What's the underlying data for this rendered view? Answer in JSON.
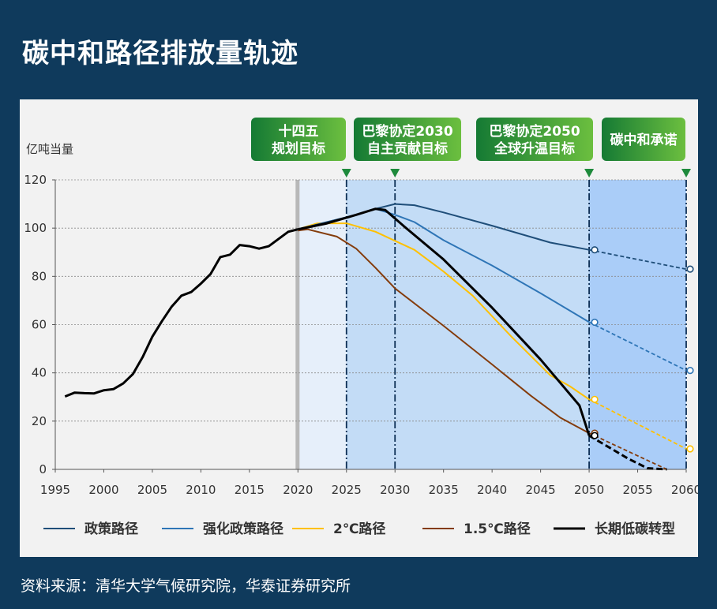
{
  "page": {
    "title": "碳中和路径排放量轨迹",
    "source": "资料来源：清华大学气候研究院，华泰证券研究所"
  },
  "colors": {
    "background": "#0f3a5c",
    "panel": "#f2f2f2",
    "policy": "#1f4e79",
    "enhanced": "#2e75b6",
    "two_c": "#ffc000",
    "one_five_c": "#843c0c",
    "long_term": "#000000",
    "marker_green": "#1e8a3c"
  },
  "chart_data": {
    "type": "line",
    "ylabel": "亿吨当量",
    "xlim": [
      1995,
      2060
    ],
    "ylim": [
      0,
      120
    ],
    "x_ticks": [
      1995,
      2000,
      2005,
      2010,
      2015,
      2020,
      2025,
      2030,
      2035,
      2040,
      2045,
      2050,
      2055,
      2060
    ],
    "y_ticks": [
      0,
      20,
      40,
      60,
      80,
      100,
      120
    ],
    "grid": true,
    "legend_position": "bottom",
    "milestones": [
      {
        "x": 2025,
        "label_line1": "十四五",
        "label_line2": "规划目标"
      },
      {
        "x": 2030,
        "label_line1": "巴黎协定2030",
        "label_line2": "自主贡献目标"
      },
      {
        "x": 2050,
        "label_line1": "巴黎协定2050",
        "label_line2": "全球升温目标"
      },
      {
        "x": 2060,
        "label_line1": "碳中和承诺",
        "label_line2": ""
      }
    ],
    "history": {
      "name": "",
      "points": [
        [
          1996,
          30.2
        ],
        [
          1997,
          31.8
        ],
        [
          1998,
          31.6
        ],
        [
          1999,
          31.5
        ],
        [
          2000,
          32.8
        ],
        [
          2001,
          33.3
        ],
        [
          2002,
          35.6
        ],
        [
          2003,
          39.5
        ],
        [
          2004,
          46.5
        ],
        [
          2005,
          55.0
        ],
        [
          2006,
          61.5
        ],
        [
          2007,
          67.5
        ],
        [
          2008,
          72.0
        ],
        [
          2009,
          73.5
        ],
        [
          2010,
          77.0
        ],
        [
          2011,
          81.0
        ],
        [
          2012,
          88.0
        ],
        [
          2013,
          89.0
        ],
        [
          2014,
          93.0
        ],
        [
          2015,
          92.5
        ],
        [
          2016,
          91.5
        ],
        [
          2017,
          92.5
        ],
        [
          2018,
          95.5
        ],
        [
          2019,
          98.5
        ],
        [
          2020,
          99.5
        ]
      ]
    },
    "series": [
      {
        "name": "政策路径",
        "color_key": "policy",
        "points": [
          [
            2020,
            99.5
          ],
          [
            2023,
            102.5
          ],
          [
            2026,
            105.5
          ],
          [
            2028,
            108.0
          ],
          [
            2030,
            110.0
          ],
          [
            2032,
            109.5
          ],
          [
            2035,
            106.5
          ],
          [
            2040,
            101.0
          ],
          [
            2046,
            94.0
          ],
          [
            2050,
            91.0
          ]
        ],
        "dashed_points": [
          [
            2050,
            91.0
          ],
          [
            2060,
            83.0
          ]
        ]
      },
      {
        "name": "强化政策路径",
        "color_key": "enhanced",
        "points": [
          [
            2020,
            99.5
          ],
          [
            2023,
            102.5
          ],
          [
            2026,
            105.5
          ],
          [
            2028,
            108.0
          ],
          [
            2030,
            105.5
          ],
          [
            2032,
            102.5
          ],
          [
            2035,
            95.0
          ],
          [
            2040,
            84.5
          ],
          [
            2045,
            73.0
          ],
          [
            2050,
            61.0
          ]
        ],
        "dashed_points": [
          [
            2050,
            61.0
          ],
          [
            2060,
            41.0
          ]
        ]
      },
      {
        "name": "2℃路径",
        "color_key": "two_c",
        "points": [
          [
            2020,
            99.5
          ],
          [
            2022,
            102.0
          ],
          [
            2025,
            102.0
          ],
          [
            2028,
            98.5
          ],
          [
            2032,
            91.0
          ],
          [
            2035,
            82.0
          ],
          [
            2038,
            72.0
          ],
          [
            2042,
            55.0
          ],
          [
            2046,
            39.0
          ],
          [
            2048,
            34.5
          ],
          [
            2050,
            29.0
          ]
        ],
        "dashed_points": [
          [
            2050,
            29.0
          ],
          [
            2060,
            8.5
          ]
        ]
      },
      {
        "name": "1.5℃路径",
        "color_key": "one_five_c",
        "points": [
          [
            2020,
            99.0
          ],
          [
            2021,
            99.5
          ],
          [
            2024,
            96.5
          ],
          [
            2026,
            91.5
          ],
          [
            2028,
            83.5
          ],
          [
            2030,
            75.0
          ],
          [
            2035,
            59.5
          ],
          [
            2040,
            43.5
          ],
          [
            2044,
            30.5
          ],
          [
            2047,
            21.5
          ],
          [
            2050,
            15.0
          ]
        ],
        "dashed_points": [
          [
            2050,
            15.0
          ],
          [
            2058,
            0.0
          ]
        ]
      },
      {
        "name": "长期低碳转型",
        "color_key": "long_term",
        "points": [
          [
            2020,
            99.5
          ],
          [
            2023,
            102.0
          ],
          [
            2026,
            105.5
          ],
          [
            2028,
            108.0
          ],
          [
            2029,
            107.5
          ],
          [
            2031,
            100.5
          ],
          [
            2035,
            87.0
          ],
          [
            2040,
            67.0
          ],
          [
            2045,
            45.5
          ],
          [
            2049,
            26.5
          ],
          [
            2050,
            14.0
          ]
        ],
        "dashed_points": [
          [
            2050,
            14.0
          ],
          [
            2054,
            4.5
          ],
          [
            2056,
            0.5
          ],
          [
            2058,
            0.0
          ]
        ]
      }
    ]
  }
}
